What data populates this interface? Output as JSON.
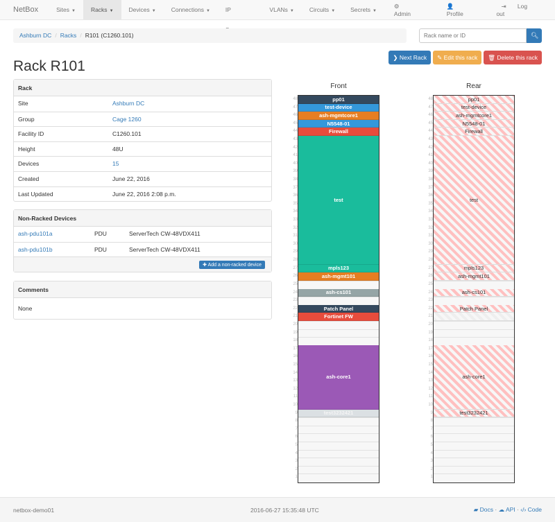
{
  "nav": {
    "brand": "NetBox",
    "items": [
      {
        "label": "Sites",
        "active": false
      },
      {
        "label": "Racks",
        "active": true
      },
      {
        "label": "Devices",
        "active": false
      },
      {
        "label": "Connections",
        "active": false
      },
      {
        "label": "IP Space",
        "active": false
      },
      {
        "label": "VLANs",
        "active": false
      },
      {
        "label": "Circuits",
        "active": false
      },
      {
        "label": "Secrets",
        "active": false
      }
    ],
    "admin": "Admin",
    "profile": "Profile",
    "logout": "Log out"
  },
  "breadcrumb": [
    "Ashburn DC",
    "Racks",
    "R101 (C1260.101)"
  ],
  "search": {
    "placeholder": "Rack name or ID"
  },
  "actions": {
    "next": "Next Rack",
    "edit": "Edit this rack",
    "delete": "Delete this rack"
  },
  "title": "Rack R101",
  "rack_panel": {
    "heading": "Rack",
    "rows": [
      {
        "k": "Site",
        "v": "Ashburn DC",
        "link": true
      },
      {
        "k": "Group",
        "v": "Cage 1260",
        "link": true
      },
      {
        "k": "Facility ID",
        "v": "C1260.101"
      },
      {
        "k": "Height",
        "v": "48U"
      },
      {
        "k": "Devices",
        "v": "15",
        "link": true
      },
      {
        "k": "Created",
        "v": "June 22, 2016"
      },
      {
        "k": "Last Updated",
        "v": "June 22, 2016 2:08 p.m."
      }
    ]
  },
  "nonracked": {
    "heading": "Non-Racked Devices",
    "rows": [
      {
        "name": "ash-pdu101a",
        "role": "PDU",
        "type": "ServerTech CW-48VDX411"
      },
      {
        "name": "ash-pdu101b",
        "role": "PDU",
        "type": "ServerTech CW-48VDX411"
      }
    ],
    "add_label": "Add a non-racked device"
  },
  "comments": {
    "heading": "Comments",
    "text": "None"
  },
  "elevation": {
    "front_label": "Front",
    "rear_label": "Rear",
    "units": 48,
    "devices": [
      {
        "name": "pp01",
        "position": 48,
        "height": 1,
        "color": "#34495e"
      },
      {
        "name": "test-device",
        "position": 47,
        "height": 1,
        "color": "#3498db"
      },
      {
        "name": "ash-mgmtcore1",
        "position": 46,
        "height": 1,
        "color": "#e67e22"
      },
      {
        "name": "N5548-01",
        "position": 45,
        "height": 1,
        "color": "#3498db"
      },
      {
        "name": "Firewall",
        "position": 44,
        "height": 1,
        "color": "#e74c3c"
      },
      {
        "name": "test",
        "position": 28,
        "height": 16,
        "color": "#1abc9c"
      },
      {
        "name": "mpls123",
        "position": 27,
        "height": 1,
        "color": "#1abc9c"
      },
      {
        "name": "ash-mgmt101",
        "position": 26,
        "height": 1,
        "color": "#e67e22"
      },
      {
        "name": "ash-cs101",
        "position": 24,
        "height": 1,
        "color": "#95a5a6"
      },
      {
        "name": "Patch Panel",
        "position": 22,
        "height": 1,
        "color": "#34495e"
      },
      {
        "name": "Fortinet FW",
        "position": 21,
        "height": 1,
        "color": "#e74c3c",
        "rear_hidden": true
      },
      {
        "name": "ash-core1",
        "position": 10,
        "height": 8,
        "color": "#9b59b6"
      },
      {
        "name": "test3232421",
        "position": 9,
        "height": 1,
        "color": "#dbe0e3"
      }
    ]
  },
  "footer": {
    "host": "netbox-demo01",
    "time": "2016-06-27 15:35:48 UTC",
    "docs": "Docs",
    "api": "API",
    "code": "Code"
  }
}
